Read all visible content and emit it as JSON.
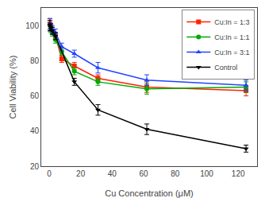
{
  "chart_data": {
    "type": "line",
    "x": [
      0.5,
      1,
      2,
      4,
      8,
      16,
      31,
      62,
      125
    ],
    "series": [
      {
        "name": "Cu:In = 1:3",
        "color": "#FF2200",
        "marker": "square",
        "values": [
          101,
          99,
          97,
          94,
          81,
          77,
          70,
          65,
          63
        ],
        "yerr": [
          3,
          2,
          2,
          2,
          2,
          2,
          2,
          3,
          3
        ]
      },
      {
        "name": "Cu:In = 1:1",
        "color": "#00AA00",
        "marker": "circle",
        "values": [
          100,
          98,
          96,
          92,
          85,
          74,
          68,
          64,
          65
        ],
        "yerr": [
          3,
          2,
          2,
          2,
          2,
          2,
          2,
          3,
          3
        ]
      },
      {
        "name": "Cu:In = 3:1",
        "color": "#2244FF",
        "marker": "triangle-up",
        "values": [
          101,
          99,
          98,
          96,
          88,
          84,
          76,
          69,
          66
        ],
        "yerr": [
          3,
          2,
          2,
          2,
          2,
          2,
          3,
          3,
          3
        ]
      },
      {
        "name": "Control",
        "color": "#000000",
        "marker": "triangle-down",
        "x": [
          0.5,
          1,
          2,
          4,
          16,
          31,
          62,
          125
        ],
        "values": [
          100,
          99,
          97,
          94,
          68,
          52,
          41,
          30
        ],
        "yerr": [
          3,
          2,
          2,
          2,
          2,
          3,
          3,
          2
        ]
      }
    ],
    "xlabel": "Cu Concentration (μM)",
    "ylabel": "Cell Viability (%)",
    "xlim": [
      -5,
      132
    ],
    "xticks": [
      0,
      20,
      40,
      60,
      80,
      100,
      120
    ],
    "ylim": [
      20,
      110
    ],
    "yticks": [
      20,
      40,
      60,
      80,
      100
    ],
    "grid": false,
    "legend": "upper right"
  }
}
